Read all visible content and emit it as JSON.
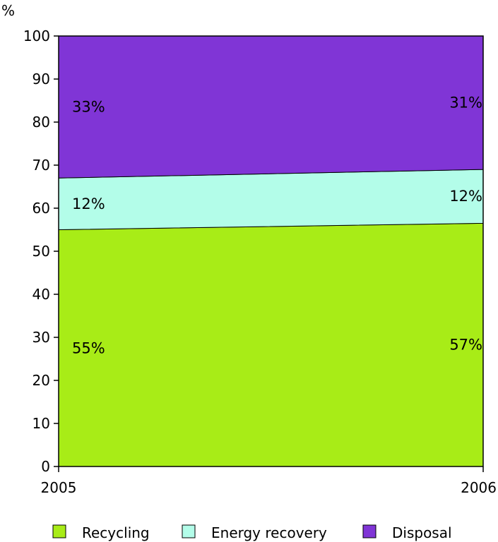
{
  "chart_data": {
    "type": "area",
    "stacked": true,
    "unit_label": "%",
    "x": [
      "2005",
      "2006"
    ],
    "ylim": [
      0,
      100
    ],
    "yticks": [
      0,
      10,
      20,
      30,
      40,
      50,
      60,
      70,
      80,
      90,
      100
    ],
    "grid": false,
    "legend_position": "bottom",
    "series": [
      {
        "name": "Recycling",
        "values": [
          55,
          56.5
        ],
        "labels": [
          "55%",
          "57%"
        ],
        "color": "#a8ec17"
      },
      {
        "name": "Energy recovery",
        "values": [
          12,
          12.5
        ],
        "labels": [
          "12%",
          "12%"
        ],
        "color": "#b3fde9"
      },
      {
        "name": "Disposal",
        "values": [
          33,
          31
        ],
        "labels": [
          "33%",
          "31%"
        ],
        "color": "#8035d6"
      }
    ]
  }
}
